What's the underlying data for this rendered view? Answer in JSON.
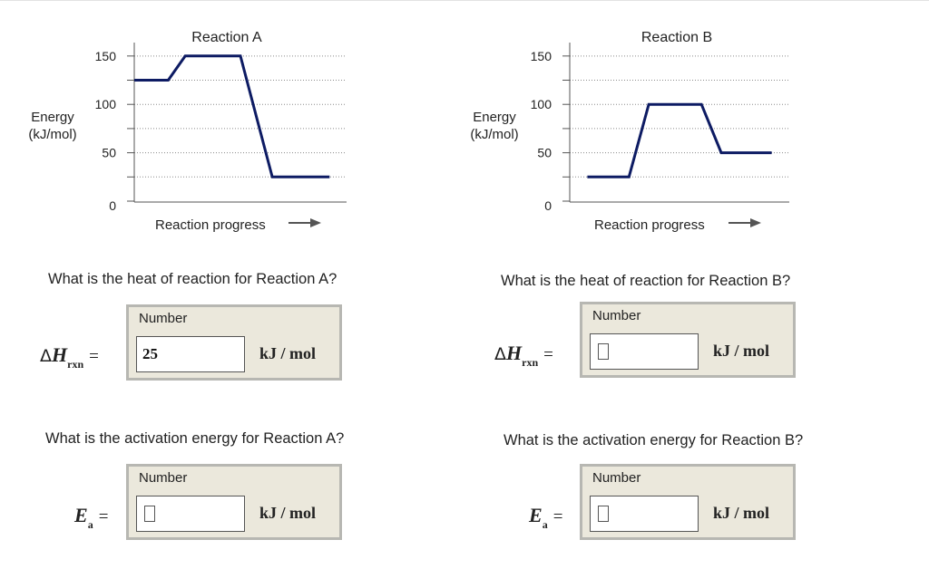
{
  "chart_data": [
    {
      "type": "line",
      "title": "Reaction A",
      "xlabel": "Reaction progress",
      "ylabel": "Energy (kJ/mol)",
      "ylabel_lines": [
        "Energy",
        "(kJ/mol)"
      ],
      "ylim": [
        0,
        162
      ],
      "yticks": [
        0,
        50,
        100,
        150
      ],
      "minor_yticks": [
        25,
        75,
        125
      ],
      "grid": true,
      "series": [
        {
          "x": [
            0,
            0.16,
            0.24,
            0.5,
            0.65,
            0.92
          ],
          "y": [
            125,
            125,
            150,
            150,
            25,
            25
          ]
        }
      ]
    },
    {
      "type": "line",
      "title": "Reaction B",
      "xlabel": "Reaction progress",
      "ylabel": "Energy (kJ/mol)",
      "ylabel_lines": [
        "Energy",
        "(kJ/mol)"
      ],
      "ylim": [
        0,
        162
      ],
      "yticks": [
        0,
        50,
        100,
        150
      ],
      "minor_yticks": [
        25,
        75,
        125
      ],
      "grid": true,
      "series": [
        {
          "x": [
            0.08,
            0.27,
            0.36,
            0.6,
            0.69,
            0.92
          ],
          "y": [
            25,
            25,
            100,
            100,
            50,
            50
          ]
        }
      ]
    }
  ],
  "questions": {
    "heat_a": "What is the heat of reaction for Reaction A?",
    "heat_b": "What is the heat of reaction for Reaction B?",
    "act_a": "What is the activation energy for Reaction A?",
    "act_b": "What is the activation energy for Reaction B?"
  },
  "answers": {
    "heat_a": {
      "title": "Number",
      "value": "25",
      "unit": "kJ / mol"
    },
    "heat_b": {
      "title": "Number",
      "value": "",
      "unit": "kJ / mol"
    },
    "act_a": {
      "title": "Number",
      "value": "",
      "unit": "kJ / mol"
    },
    "act_b": {
      "title": "Number",
      "value": "",
      "unit": "kJ / mol"
    }
  },
  "labels": {
    "delta_h_symbol": "Δ",
    "h_letter": "H",
    "h_subscript": "rxn",
    "e_letter": "E",
    "e_subscript": "a",
    "equals": "="
  },
  "colors": {
    "curve": "#0d1b63",
    "grid": "#8a8a8a",
    "box_bg": "#ebe8dc"
  }
}
